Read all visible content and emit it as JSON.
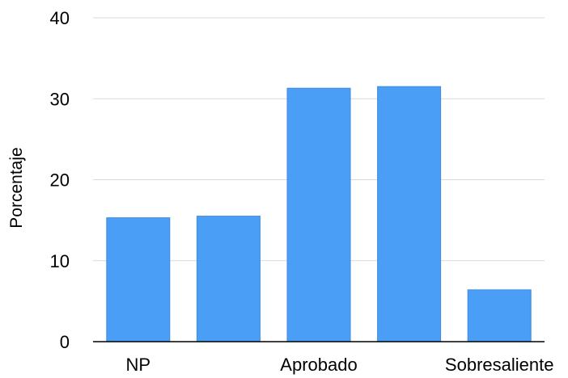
{
  "chart_data": {
    "type": "bar",
    "categories": [
      "NP",
      "",
      "Aprobado",
      "",
      "Sobresaliente"
    ],
    "values": [
      15.3,
      15.5,
      31.3,
      31.5,
      6.4
    ],
    "ylabel": "Porcentaje",
    "xlabel": "",
    "ylim": [
      0,
      40
    ],
    "yticks": [
      0,
      10,
      20,
      30,
      40
    ],
    "grid": true,
    "bar_color": "#4a9ef5",
    "bar_edge_color": "#3f8be0",
    "grid_color": "#d9d9d9",
    "axis_color": "#000000"
  }
}
